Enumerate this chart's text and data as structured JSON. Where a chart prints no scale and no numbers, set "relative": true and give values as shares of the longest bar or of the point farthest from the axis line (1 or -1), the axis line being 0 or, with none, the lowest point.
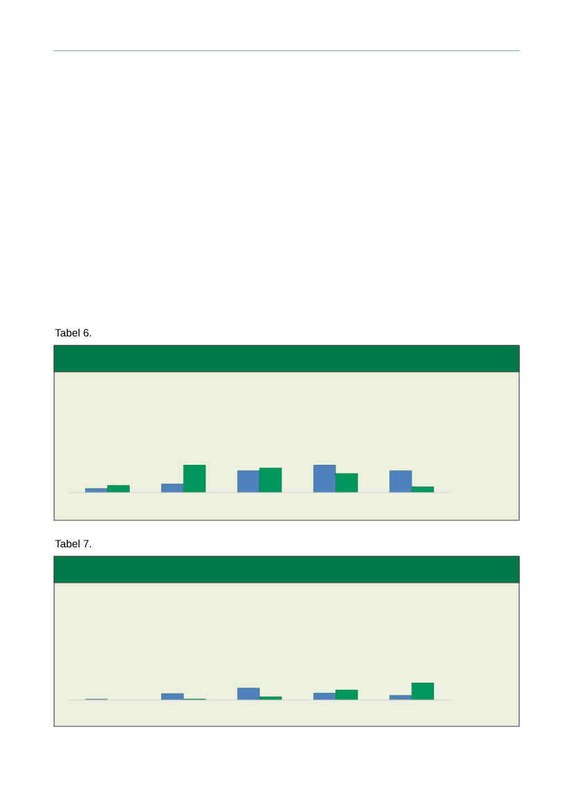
{
  "chart_data": [
    {
      "type": "bar",
      "title": "Tabel 6.",
      "relative": true,
      "categories": [
        null,
        null,
        null,
        null,
        null
      ],
      "legend": false,
      "grid": false,
      "series": [
        {
          "color": "#4f81bd",
          "values": [
            0.15,
            0.31,
            0.79,
            1,
            0.79
          ]
        },
        {
          "color": "#00975a",
          "values": [
            0.26,
            1,
            0.89,
            0.69,
            0.21
          ]
        }
      ]
    },
    {
      "type": "bar",
      "title": "Tabel 7.",
      "relative": true,
      "categories": [
        null,
        null,
        null,
        null,
        null
      ],
      "legend": false,
      "grid": false,
      "series": [
        {
          "color": "#4f81bd",
          "values": [
            0.05,
            0.37,
            0.69,
            0.4,
            0.27
          ]
        },
        {
          "color": "#00975a",
          "values": [
            null,
            0.06,
            0.19,
            0.58,
            1
          ]
        }
      ]
    }
  ]
}
